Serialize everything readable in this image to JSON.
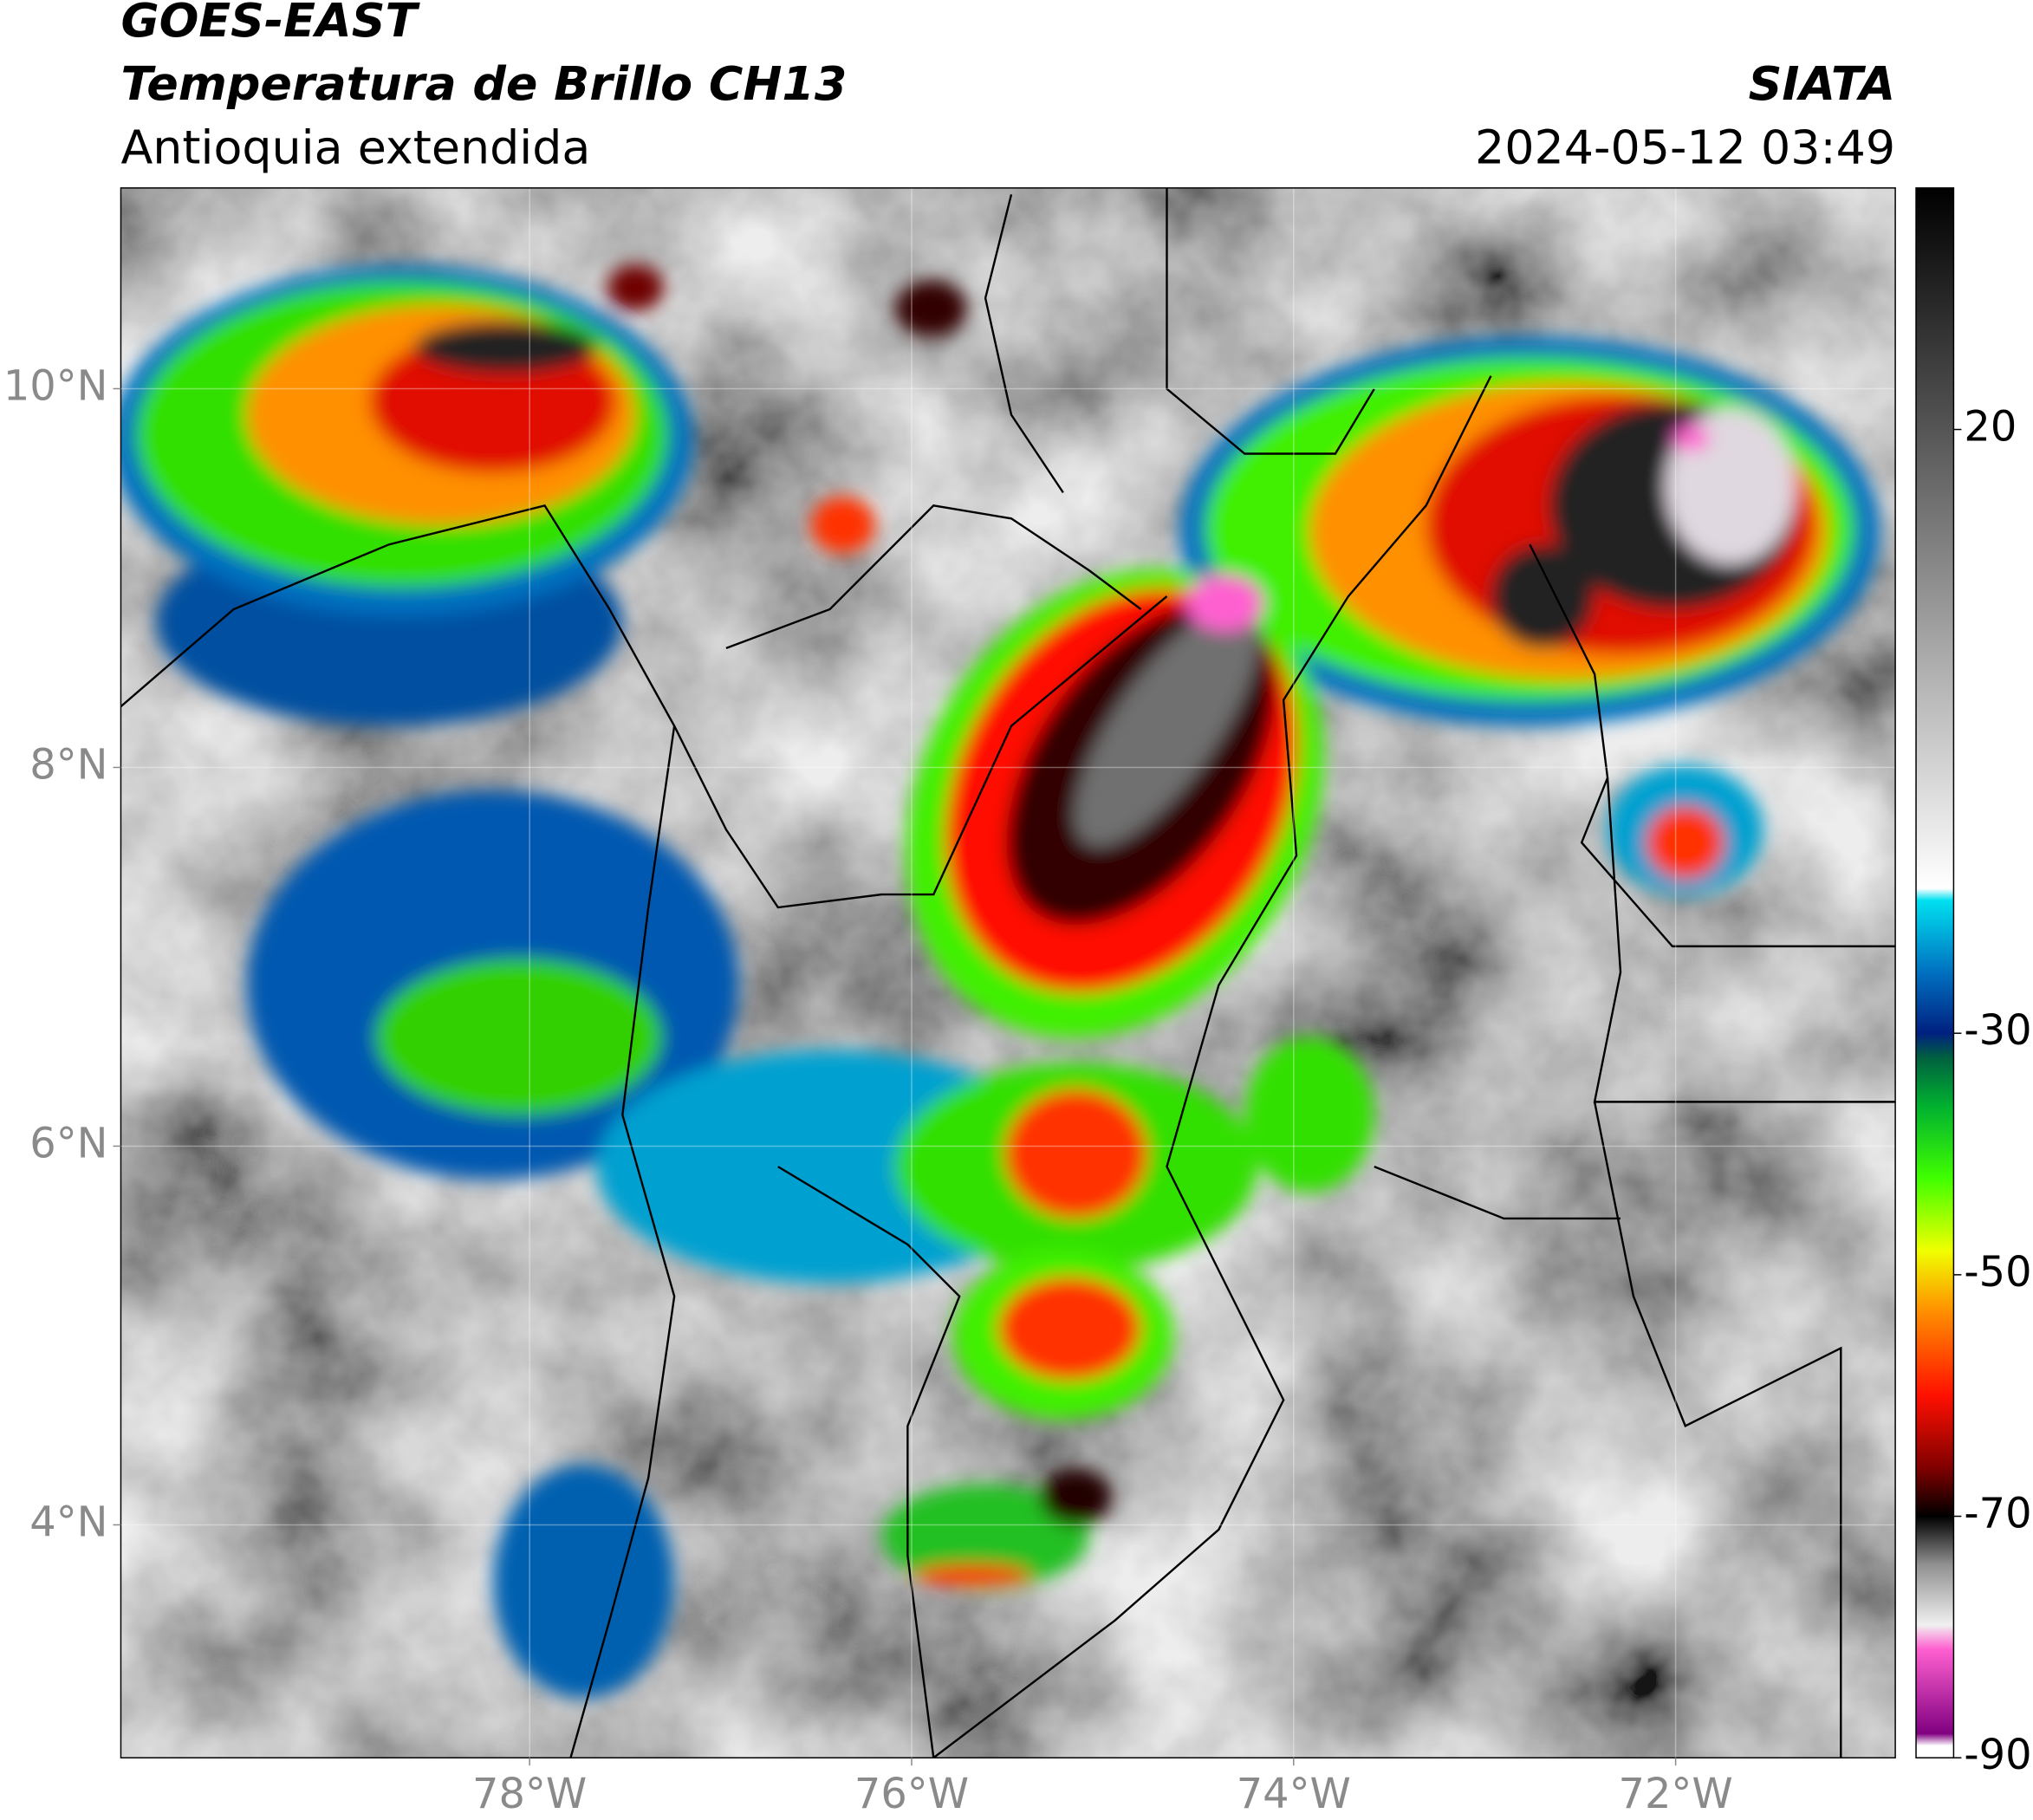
{
  "header": {
    "title": "GOES-EAST",
    "subtitle": "Temperatura de Brillo CH13",
    "region": "Antioquia extendida",
    "source": "SIATA",
    "datetime": "2024-05-12 03:49"
  },
  "map": {
    "xlim": [
      -80.14,
      -70.85
    ],
    "ylim": [
      2.77,
      11.06
    ],
    "xticks": [
      {
        "value": -78,
        "label": "78°W"
      },
      {
        "value": -76,
        "label": "76°W"
      },
      {
        "value": -74,
        "label": "74°W"
      },
      {
        "value": -72,
        "label": "72°W"
      }
    ],
    "yticks": [
      {
        "value": 4,
        "label": "4°N"
      },
      {
        "value": 6,
        "label": "6°N"
      },
      {
        "value": 8,
        "label": "8°N"
      },
      {
        "value": 10,
        "label": "10°N"
      }
    ],
    "grid": true
  },
  "colorbar": {
    "lim": [
      -90,
      40
    ],
    "ticks": [
      20,
      -30,
      -50,
      -70,
      -90
    ],
    "stops": [
      {
        "value": 40,
        "color": "#000000"
      },
      {
        "value": 20,
        "color": "#555555"
      },
      {
        "value": 0,
        "color": "#b0b0b0"
      },
      {
        "value": -18,
        "color": "#ffffff"
      },
      {
        "value": -19,
        "color": "#00e0f0"
      },
      {
        "value": -25,
        "color": "#0070c0"
      },
      {
        "value": -30,
        "color": "#002080"
      },
      {
        "value": -32,
        "color": "#006040"
      },
      {
        "value": -36,
        "color": "#00b030"
      },
      {
        "value": -42,
        "color": "#40ff00"
      },
      {
        "value": -48,
        "color": "#f0ff00"
      },
      {
        "value": -53,
        "color": "#ff9000"
      },
      {
        "value": -60,
        "color": "#ff1000"
      },
      {
        "value": -66,
        "color": "#800000"
      },
      {
        "value": -70,
        "color": "#000000"
      },
      {
        "value": -74,
        "color": "#909090"
      },
      {
        "value": -79,
        "color": "#f0f0f0"
      },
      {
        "value": -81,
        "color": "#ff60d0"
      },
      {
        "value": -88,
        "color": "#800080"
      },
      {
        "value": -89,
        "color": "#ffffff"
      },
      {
        "value": -90,
        "color": "#ffffff"
      }
    ]
  }
}
